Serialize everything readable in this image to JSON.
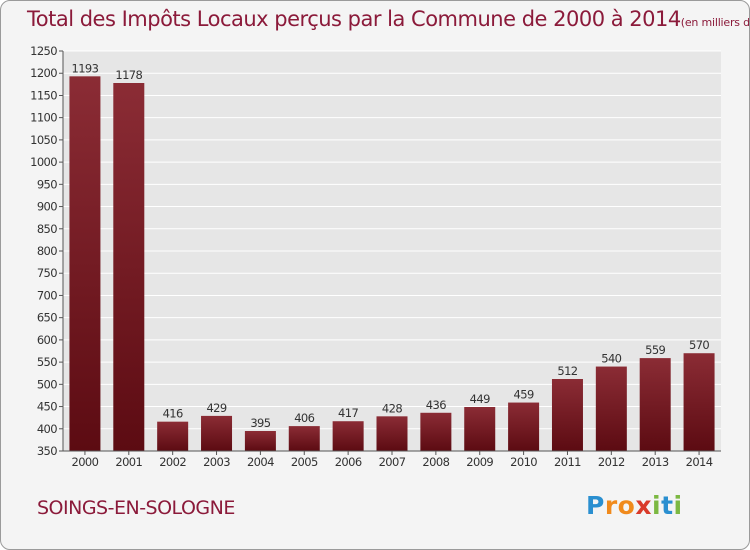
{
  "chart_data": {
    "type": "bar",
    "title": "Total des Impôts Locaux perçus par la Commune de 2000 à 2014",
    "title_unit": "(en milliers d'€)",
    "categories": [
      "2000",
      "2001",
      "2002",
      "2003",
      "2004",
      "2005",
      "2006",
      "2007",
      "2008",
      "2009",
      "2010",
      "2011",
      "2012",
      "2013",
      "2014"
    ],
    "values": [
      1193,
      1178,
      416,
      429,
      395,
      406,
      417,
      428,
      436,
      449,
      459,
      512,
      540,
      559,
      570
    ],
    "ylim": [
      350,
      1250
    ],
    "yticks": [
      350,
      400,
      450,
      500,
      550,
      600,
      650,
      700,
      750,
      800,
      850,
      900,
      950,
      1000,
      1050,
      1100,
      1150,
      1200,
      1250
    ],
    "grid": true,
    "xlabel": "",
    "ylabel": "",
    "colors": {
      "bar_top": "#8b2c35",
      "bar_bottom": "#5c0b12",
      "text": "#8b1a3a",
      "grid": "#ffffff"
    }
  },
  "footer": {
    "commune": "SOINGS-EN-SOLOGNE",
    "logo_letters": [
      "P",
      "r",
      "o",
      "x",
      "i",
      "t",
      "i"
    ],
    "logo_colors": [
      "#2a8fd0",
      "#f08a1c",
      "#f08a1c",
      "#d93a2a",
      "#7cb842",
      "#2a8fd0",
      "#7cb842"
    ]
  }
}
